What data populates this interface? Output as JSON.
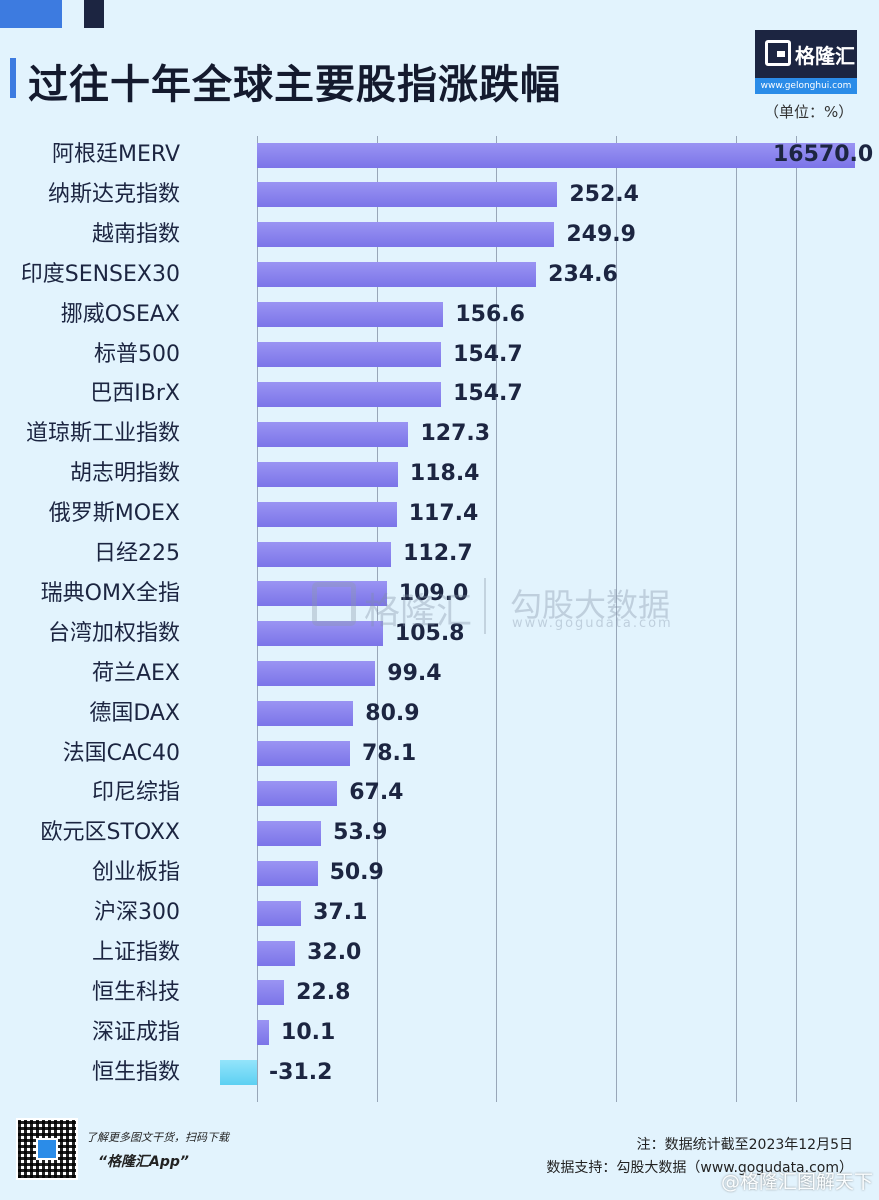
{
  "header": {
    "title": "过往十年全球主要股指涨跌幅",
    "unit": "（单位：%）"
  },
  "logo": {
    "text": "格隆汇",
    "url": "www.gelonghui.com"
  },
  "watermark": {
    "brand": "格隆汇",
    "partner": "勾股大数据",
    "url": "www.gogudata.com"
  },
  "footer": {
    "qr_caption": "了解更多图文干货，扫码下载",
    "app_name": "“格隆汇App”",
    "note": "注：数据统计截至2023年12月5日",
    "source": "数据支持：勾股大数据（www.gogudata.com）",
    "weibo_mark": "@格隆汇图解天下"
  },
  "colors": {
    "positive_bar": "#8a84f0",
    "negative_bar": "#70d8f5",
    "background": "#e2f3fd",
    "accent": "#3d7be0"
  },
  "chart_data": {
    "type": "bar",
    "orientation": "horizontal",
    "title": "过往十年全球主要股指涨跌幅",
    "unit": "%",
    "grid": true,
    "categories": [
      "阿根廷MERV",
      "纳斯达克指数",
      "越南指数",
      "印度SENSEX30",
      "挪威OSEAX",
      "标普500",
      "巴西IBrX",
      "道琼斯工业指数",
      "胡志明指数",
      "俄罗斯MOEX",
      "日经225",
      "瑞典OMX全指",
      "台湾加权指数",
      "荷兰AEX",
      "德国DAX",
      "法国CAC40",
      "印尼综指",
      "欧元区STOXX",
      "创业板指",
      "沪深300",
      "上证指数",
      "恒生科技",
      "深证成指",
      "恒生指数"
    ],
    "values": [
      16570.0,
      252.4,
      249.9,
      234.6,
      156.6,
      154.7,
      154.7,
      127.3,
      118.4,
      117.4,
      112.7,
      109.0,
      105.8,
      99.4,
      80.9,
      78.1,
      67.4,
      53.9,
      50.9,
      37.1,
      32.0,
      22.8,
      10.1,
      -31.2
    ],
    "value_labels": [
      "16570.0",
      "252.4",
      "249.9",
      "234.6",
      "156.6",
      "154.7",
      "154.7",
      "127.3",
      "118.4",
      "117.4",
      "112.7",
      "109.0",
      "105.8",
      "99.4",
      "80.9",
      "78.1",
      "67.4",
      "53.9",
      "50.9",
      "37.1",
      "32.0",
      "22.8",
      "10.1",
      "-31.2"
    ],
    "axis_break": true
  }
}
